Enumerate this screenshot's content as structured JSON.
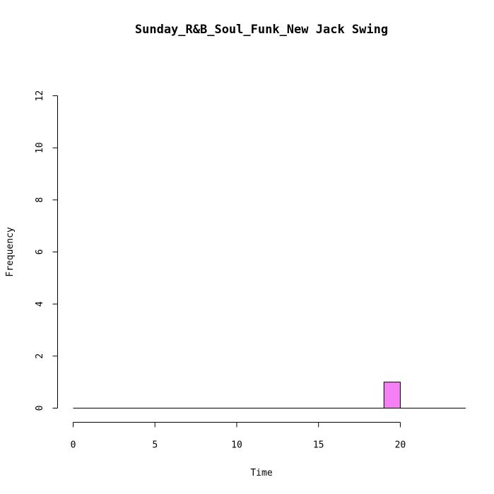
{
  "chart_data": {
    "type": "bar",
    "subtype": "histogram",
    "title": "Sunday_R&B_Soul_Funk_New Jack Swing",
    "xlabel": "Time",
    "ylabel": "Frequency",
    "xlim": [
      0,
      24
    ],
    "ylim": [
      0,
      12
    ],
    "x_ticks": [
      "0",
      "5",
      "10",
      "15",
      "20"
    ],
    "y_ticks": [
      "0",
      "2",
      "4",
      "6",
      "8",
      "10",
      "12"
    ],
    "bin_width": 1,
    "bins": [
      {
        "start": 0,
        "end": 1,
        "count": 0
      },
      {
        "start": 1,
        "end": 2,
        "count": 0
      },
      {
        "start": 2,
        "end": 3,
        "count": 0
      },
      {
        "start": 3,
        "end": 4,
        "count": 0
      },
      {
        "start": 4,
        "end": 5,
        "count": 0
      },
      {
        "start": 5,
        "end": 6,
        "count": 0
      },
      {
        "start": 6,
        "end": 7,
        "count": 0
      },
      {
        "start": 7,
        "end": 8,
        "count": 0
      },
      {
        "start": 8,
        "end": 9,
        "count": 0
      },
      {
        "start": 9,
        "end": 10,
        "count": 0
      },
      {
        "start": 10,
        "end": 11,
        "count": 0
      },
      {
        "start": 11,
        "end": 12,
        "count": 0
      },
      {
        "start": 12,
        "end": 13,
        "count": 0
      },
      {
        "start": 13,
        "end": 14,
        "count": 0
      },
      {
        "start": 14,
        "end": 15,
        "count": 0
      },
      {
        "start": 15,
        "end": 16,
        "count": 0
      },
      {
        "start": 16,
        "end": 17,
        "count": 0
      },
      {
        "start": 17,
        "end": 18,
        "count": 0
      },
      {
        "start": 18,
        "end": 19,
        "count": 0
      },
      {
        "start": 19,
        "end": 20,
        "count": 1
      },
      {
        "start": 20,
        "end": 21,
        "count": 0
      },
      {
        "start": 21,
        "end": 22,
        "count": 0
      },
      {
        "start": 22,
        "end": 23,
        "count": 0
      },
      {
        "start": 23,
        "end": 24,
        "count": 0
      }
    ],
    "bar_color": "#f57ff5",
    "grid": false
  }
}
